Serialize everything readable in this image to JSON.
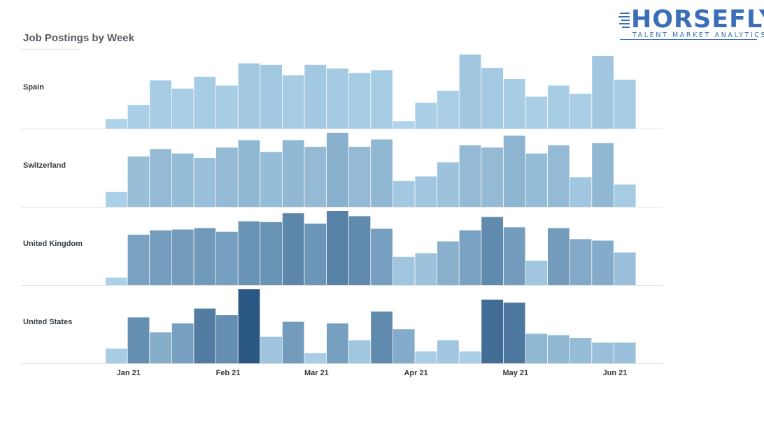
{
  "title": "Job Postings by Week",
  "logo": {
    "word": "HORSEFLY",
    "tagline": "TALENT MARKET ANALYTICS"
  },
  "chart_data": {
    "type": "bar",
    "title": "Job Postings by Week",
    "x_ticks": [
      {
        "label": "Jan 21",
        "week": 1
      },
      {
        "label": "Feb 21",
        "week": 5.5
      },
      {
        "label": "Mar 21",
        "week": 9.5
      },
      {
        "label": "Apr 21",
        "week": 14
      },
      {
        "label": "May 21",
        "week": 18.5
      },
      {
        "label": "Jun 21",
        "week": 23
      }
    ],
    "weeks": 24,
    "value_range": [
      0,
      100
    ],
    "color_range": [
      "#aed3ea",
      "#2a5783"
    ],
    "series": [
      {
        "name": "Spain",
        "values": [
          13,
          32,
          65,
          54,
          70,
          58,
          88,
          86,
          72,
          86,
          81,
          75,
          79,
          10,
          35,
          51,
          100,
          82,
          67,
          43,
          58,
          47,
          98,
          66
        ],
        "shades": [
          0.0,
          0.03,
          0.05,
          0.04,
          0.05,
          0.05,
          0.08,
          0.08,
          0.06,
          0.08,
          0.07,
          0.06,
          0.06,
          0.0,
          0.03,
          0.04,
          0.1,
          0.07,
          0.05,
          0.03,
          0.05,
          0.04,
          0.1,
          0.05
        ]
      },
      {
        "name": "Switzerland",
        "values": [
          20,
          68,
          78,
          72,
          66,
          80,
          90,
          74,
          90,
          81,
          100,
          81,
          91,
          35,
          41,
          60,
          83,
          80,
          96,
          72,
          83,
          40,
          86,
          30
        ],
        "shades": [
          0.02,
          0.17,
          0.2,
          0.18,
          0.16,
          0.2,
          0.22,
          0.18,
          0.22,
          0.2,
          0.28,
          0.2,
          0.22,
          0.08,
          0.1,
          0.14,
          0.2,
          0.2,
          0.25,
          0.18,
          0.2,
          0.1,
          0.22,
          0.06
        ]
      },
      {
        "name": "United Kingdom",
        "values": [
          10,
          68,
          74,
          75,
          77,
          72,
          86,
          85,
          97,
          83,
          100,
          93,
          76,
          38,
          43,
          59,
          74,
          92,
          78,
          33,
          77,
          62,
          60,
          44
        ],
        "shades": [
          0.02,
          0.4,
          0.43,
          0.45,
          0.47,
          0.42,
          0.52,
          0.52,
          0.62,
          0.5,
          0.66,
          0.58,
          0.42,
          0.1,
          0.14,
          0.28,
          0.4,
          0.58,
          0.44,
          0.1,
          0.44,
          0.33,
          0.32,
          0.16
        ]
      },
      {
        "name": "United States",
        "values": [
          20,
          62,
          42,
          54,
          74,
          65,
          100,
          36,
          56,
          14,
          54,
          31,
          70,
          46,
          16,
          31,
          16,
          86,
          82,
          40,
          38,
          34,
          28,
          28
        ],
        "shades": [
          0.05,
          0.55,
          0.3,
          0.42,
          0.7,
          0.55,
          1.0,
          0.12,
          0.45,
          0.04,
          0.42,
          0.1,
          0.58,
          0.32,
          0.04,
          0.1,
          0.04,
          0.82,
          0.74,
          0.22,
          0.22,
          0.18,
          0.15,
          0.15
        ]
      }
    ]
  }
}
